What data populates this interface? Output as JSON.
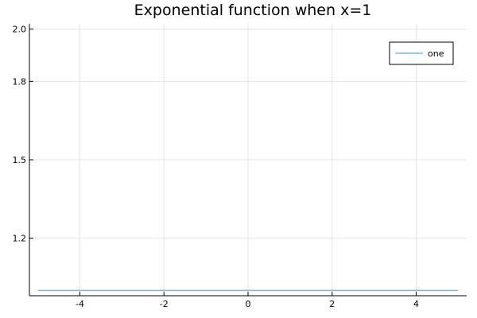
{
  "chart_data": {
    "type": "line",
    "title": "Exponential function when x=1",
    "xlabel": "",
    "ylabel": "",
    "xlim": [
      -5.2,
      5.2
    ],
    "ylim": [
      0.98,
      2.02
    ],
    "x_ticks": [
      -4,
      -2,
      0,
      2,
      4
    ],
    "x_tick_labels": [
      "-4",
      "-2",
      "0",
      "2",
      "4"
    ],
    "y_ticks": [
      1.2,
      1.5,
      1.8,
      2.0
    ],
    "y_tick_labels": [
      "1.2",
      "1.5",
      "1.8",
      "2.0"
    ],
    "grid": true,
    "legend_position": "top-right",
    "series": [
      {
        "name": "one",
        "color": "#6fbce8",
        "x": [
          -5,
          -4,
          -3,
          -2,
          -1,
          0,
          1,
          2,
          3,
          4,
          5
        ],
        "y": [
          1,
          1,
          1,
          1,
          1,
          1,
          1,
          1,
          1,
          1,
          1
        ]
      }
    ]
  }
}
